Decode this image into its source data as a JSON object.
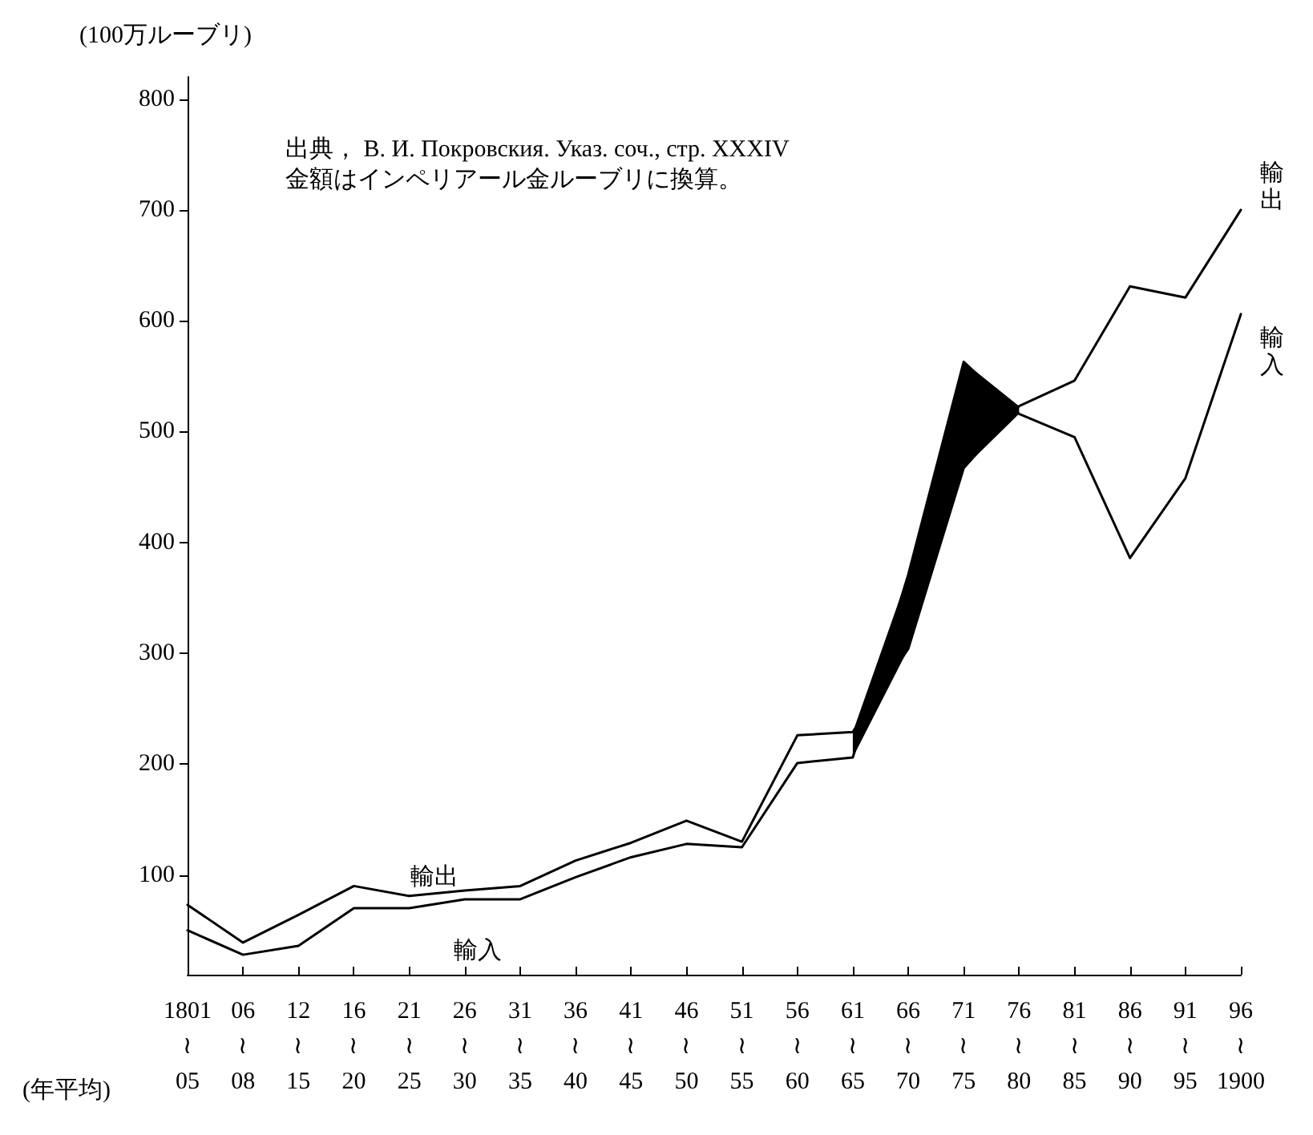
{
  "chart_data": {
    "type": "line",
    "ylabel": "(100万ルーブリ)",
    "categories": [
      "1801\n≀\n05",
      "06\n≀\n08",
      "12\n≀\n15",
      "16\n≀\n20",
      "21\n≀\n25",
      "26\n≀\n30",
      "31\n≀\n35",
      "36\n≀\n40",
      "41\n≀\n45",
      "46\n≀\n50",
      "51\n≀\n55",
      "56\n≀\n60",
      "61\n≀\n65",
      "66\n≀\n70",
      "71\n≀\n75",
      "76\n≀\n80",
      "81\n≀\n85",
      "86\n≀\n90",
      "91\n≀\n95",
      "96\n≀\n1900"
    ],
    "series": [
      {
        "name": "輸出",
        "color": "#000000",
        "values": [
          73,
          39,
          64,
          90,
          81,
          86,
          90,
          113,
          129,
          149,
          130,
          226,
          229,
          304,
          467,
          523,
          546,
          631,
          621,
          700
        ]
      },
      {
        "name": "輸入",
        "color": "#000000",
        "values": [
          50,
          28,
          36,
          70,
          70,
          78,
          78,
          98,
          116,
          128,
          125,
          201,
          206,
          371,
          563,
          516,
          495,
          386,
          458,
          606
        ],
        "lower": [
          null,
          null,
          null,
          null,
          null,
          null,
          null,
          null,
          null,
          null,
          null,
          null,
          206,
          304,
          467,
          516,
          null,
          null,
          null,
          null
        ],
        "upper": [
          null,
          null,
          null,
          null,
          null,
          null,
          null,
          null,
          null,
          null,
          null,
          null,
          229,
          371,
          563,
          523,
          null,
          null,
          null,
          null
        ]
      }
    ],
    "ylim": [
      10,
      820
    ],
    "yticks": [
      100,
      200,
      300,
      400,
      500,
      600,
      700,
      800
    ],
    "annotations": [
      "出典， В. И. Покровския. Указ. соч., стр. XXXIV",
      "金額はインペリアール金ルーブリに換算。",
      "(年平均)",
      "輸出",
      "輸入"
    ],
    "grid": false,
    "legend": false,
    "marker": "none",
    "line_style": "solid"
  }
}
